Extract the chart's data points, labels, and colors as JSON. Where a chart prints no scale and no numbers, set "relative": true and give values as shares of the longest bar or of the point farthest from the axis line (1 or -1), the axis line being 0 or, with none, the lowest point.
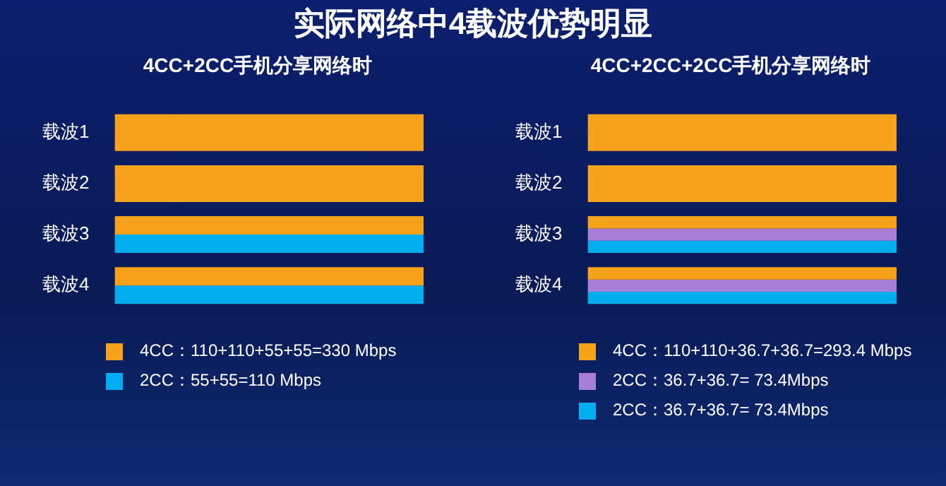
{
  "chart_data": [
    {
      "type": "bar",
      "title": "实际网络中4载波优势明显",
      "subtitle": "4CC+2CC手机分享网络时",
      "orientation": "horizontal",
      "relative": true,
      "categories": [
        "载波1",
        "载波2",
        "载波3",
        "载波4"
      ],
      "tick_labels": "y",
      "legend": "bottom",
      "series": [
        {
          "name": "4CC：110+110+55+55=330 Mbps",
          "color": "#f7a21b",
          "values": [
            1,
            1,
            1,
            1
          ]
        },
        {
          "name": "2CC：55+55=110 Mbps",
          "color": "#00aeef",
          "values": [
            null,
            null,
            1,
            1
          ]
        }
      ]
    },
    {
      "type": "bar",
      "subtitle": "4CC+2CC+2CC手机分享网络时",
      "orientation": "horizontal",
      "relative": true,
      "categories": [
        "载波1",
        "载波2",
        "载波3",
        "载波4"
      ],
      "tick_labels": "y",
      "legend": "bottom",
      "series": [
        {
          "name": "4CC：110+110+36.7+36.7=293.4 Mbps",
          "color": "#f7a21b",
          "values": [
            1,
            1,
            1,
            1
          ]
        },
        {
          "name": "2CC：36.7+36.7= 73.4Mbps",
          "color": "#a77fd6",
          "values": [
            null,
            null,
            1,
            1
          ]
        },
        {
          "name": "2CC：36.7+36.7= 73.4Mbps",
          "color": "#00aeef",
          "values": [
            null,
            null,
            1,
            1
          ]
        }
      ]
    }
  ]
}
